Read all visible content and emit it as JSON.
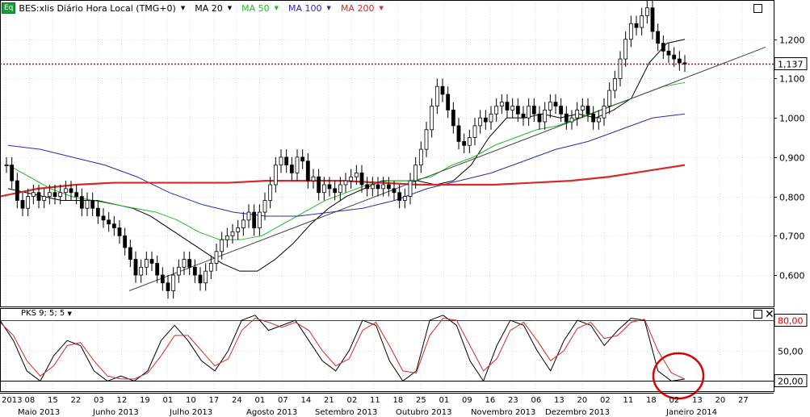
{
  "header": {
    "badge": "Eq",
    "symbol": "BES:xlis Diário Hora Local (TMG+0)",
    "ma": [
      {
        "label": "MA 20",
        "color": "#000000"
      },
      {
        "label": "MA 50",
        "color": "#22bb22"
      },
      {
        "label": "MA 100",
        "color": "#2a2ab5"
      },
      {
        "label": "MA 200",
        "color": "#d42a2a"
      }
    ]
  },
  "oscillator": {
    "label": "PKS 9; 5; 5"
  },
  "chart_data": [
    {
      "type": "candlestick",
      "ylim": [
        0.52,
        1.3
      ],
      "yticks": [
        "0,600",
        "0,700",
        "0,800",
        "0,900",
        "1,000",
        "1,100",
        "1,200"
      ],
      "last_price_label": "1,137",
      "last_price": 1.137,
      "bars_close": [
        0.88,
        0.84,
        0.79,
        0.77,
        0.8,
        0.81,
        0.79,
        0.8,
        0.81,
        0.8,
        0.81,
        0.82,
        0.81,
        0.8,
        0.77,
        0.79,
        0.77,
        0.75,
        0.74,
        0.73,
        0.72,
        0.7,
        0.67,
        0.64,
        0.6,
        0.62,
        0.64,
        0.63,
        0.6,
        0.58,
        0.56,
        0.6,
        0.62,
        0.64,
        0.62,
        0.6,
        0.58,
        0.61,
        0.63,
        0.66,
        0.69,
        0.7,
        0.71,
        0.72,
        0.74,
        0.76,
        0.72,
        0.76,
        0.79,
        0.83,
        0.88,
        0.9,
        0.88,
        0.86,
        0.9,
        0.89,
        0.84,
        0.85,
        0.81,
        0.83,
        0.82,
        0.81,
        0.83,
        0.84,
        0.85,
        0.86,
        0.83,
        0.82,
        0.83,
        0.82,
        0.83,
        0.82,
        0.81,
        0.79,
        0.8,
        0.84,
        0.88,
        0.92,
        0.97,
        1.03,
        1.08,
        1.06,
        1.02,
        0.98,
        0.94,
        0.93,
        0.95,
        0.98,
        1.0,
        0.99,
        1.01,
        1.03,
        1.04,
        1.02,
        1.03,
        1.01,
        1.0,
        1.03,
        1.01,
        0.99,
        1.02,
        1.04,
        1.03,
        1.01,
        0.99,
        1.0,
        1.02,
        1.03,
        1.01,
        0.99,
        1.0,
        1.03,
        1.07,
        1.1,
        1.15,
        1.2,
        1.24,
        1.23,
        1.26,
        1.28,
        1.22,
        1.19,
        1.17,
        1.16,
        1.15,
        1.14,
        1.137
      ],
      "ma_series": [
        {
          "color": "#000000",
          "values": [
            0.82,
            0.81,
            0.8,
            0.79,
            0.79,
            0.79,
            0.78,
            0.77,
            0.75,
            0.72,
            0.69,
            0.66,
            0.63,
            0.61,
            0.61,
            0.64,
            0.68,
            0.73,
            0.77,
            0.8,
            0.82,
            0.84,
            0.84,
            0.84,
            0.83,
            0.84,
            0.88,
            0.95,
            1.0,
            1.0,
            1.01,
            1.0,
            1.01,
            1.0,
            1.02,
            1.05,
            1.14,
            1.19,
            1.2
          ]
        },
        {
          "color": "#22bb22",
          "values": [
            0.88,
            0.85,
            0.82,
            0.8,
            0.79,
            0.78,
            0.77,
            0.76,
            0.74,
            0.71,
            0.69,
            0.69,
            0.7,
            0.73,
            0.76,
            0.79,
            0.81,
            0.83,
            0.84,
            0.84,
            0.85,
            0.88,
            0.9,
            0.93,
            0.95,
            0.97,
            0.98,
            1.0,
            1.02,
            1.04,
            1.06,
            1.08,
            1.09
          ]
        },
        {
          "color": "#2a2ab5",
          "values": [
            0.93,
            0.92,
            0.9,
            0.88,
            0.85,
            0.81,
            0.78,
            0.76,
            0.75,
            0.75,
            0.76,
            0.77,
            0.79,
            0.82,
            0.84,
            0.86,
            0.89,
            0.92,
            0.94,
            0.97,
            1.0,
            1.01
          ]
        },
        {
          "color": "#d42a2a",
          "values": [
            0.8,
            0.82,
            0.83,
            0.835,
            0.835,
            0.835,
            0.835,
            0.84,
            0.84,
            0.84,
            0.835,
            0.83,
            0.83,
            0.83,
            0.835,
            0.84,
            0.85,
            0.865,
            0.88
          ]
        }
      ],
      "trendline": [
        0.56,
        1.18
      ]
    },
    {
      "type": "line",
      "name": "PKS 9; 5; 5",
      "ylim": [
        10,
        92
      ],
      "yticks": [
        "20,00",
        "50,00",
        "80,00"
      ],
      "levels": [
        20,
        80
      ],
      "k": [
        80,
        60,
        30,
        20,
        45,
        60,
        55,
        30,
        20,
        25,
        20,
        30,
        60,
        75,
        60,
        40,
        30,
        50,
        80,
        85,
        70,
        75,
        80,
        60,
        40,
        30,
        50,
        80,
        75,
        40,
        20,
        30,
        80,
        85,
        75,
        40,
        20,
        55,
        80,
        75,
        50,
        30,
        60,
        80,
        75,
        55,
        70,
        82,
        80,
        30,
        20,
        22
      ],
      "d": [
        78,
        65,
        40,
        25,
        35,
        55,
        58,
        40,
        25,
        22,
        22,
        28,
        45,
        65,
        65,
        50,
        35,
        42,
        70,
        82,
        78,
        73,
        78,
        70,
        50,
        35,
        42,
        70,
        78,
        55,
        30,
        28,
        65,
        82,
        80,
        55,
        30,
        42,
        70,
        78,
        60,
        40,
        50,
        72,
        78,
        62,
        65,
        78,
        81,
        50,
        28,
        22
      ]
    }
  ],
  "xaxis": {
    "days": [
      "2013",
      "08",
      "15",
      "22",
      "03",
      "12",
      "19",
      "01",
      "10",
      "17",
      "24",
      "01",
      "07",
      "14",
      "21",
      "02",
      "11",
      "18",
      "25",
      "01",
      "09",
      "16",
      "23",
      "06",
      "13",
      "20",
      "02",
      "11",
      "18",
      "02",
      "13",
      "20",
      "27"
    ],
    "months": [
      "Maio 2013",
      "Junho 2013",
      "Julho 2013",
      "Agosto 2013",
      "Setembro 2013",
      "Outubro 2013",
      "Novembro 2013",
      "Dezembro 2013",
      "Janeiro 2014"
    ]
  }
}
